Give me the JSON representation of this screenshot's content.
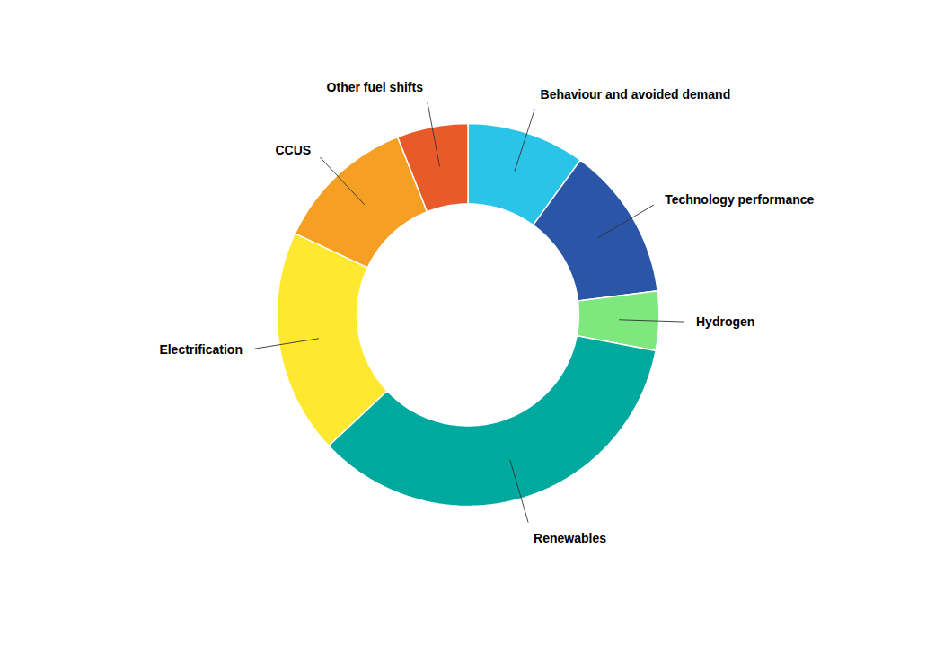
{
  "chart_data": {
    "type": "donut",
    "categories": [
      "Behaviour and avoided demand",
      "Technology performance",
      "Hydrogen",
      "Renewables",
      "Electrification",
      "CCUS",
      "Other fuel shifts"
    ],
    "values": [
      10,
      13,
      5,
      35,
      19,
      12,
      6
    ],
    "colors": [
      "#29C4E8",
      "#2B56A8",
      "#7EE87E",
      "#00A99D",
      "#FFE830",
      "#F5A025",
      "#E85A2A"
    ]
  }
}
